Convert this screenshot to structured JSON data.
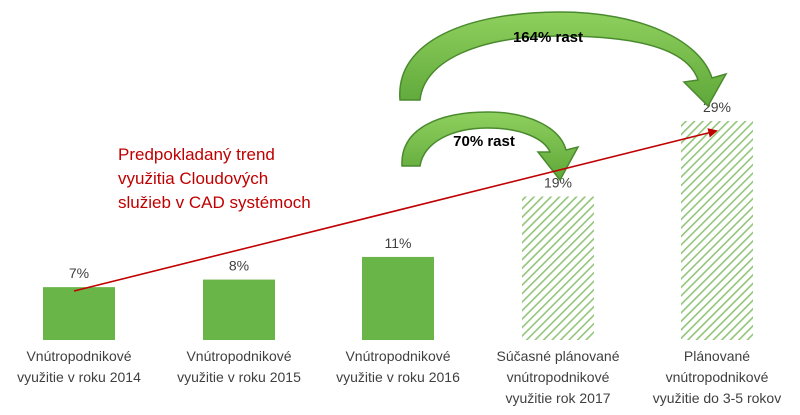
{
  "chart_data": {
    "type": "bar",
    "categories": [
      [
        "Vnútropodnikové",
        "využitie v roku 2014"
      ],
      [
        "Vnútropodnikové",
        "využitie v roku 2015"
      ],
      [
        "Vnútropodnikové",
        "využitie v roku 2016"
      ],
      [
        "Súčasné plánované",
        "vnútropodnikové",
        "využitie rok 2017"
      ],
      [
        "Plánované",
        "vnútropodnikové",
        "využitie do 3-5 rokov"
      ]
    ],
    "values": [
      7,
      8,
      11,
      19,
      29
    ],
    "value_labels": [
      "7%",
      "8%",
      "11%",
      "19%",
      "29%"
    ],
    "hatched": [
      false,
      false,
      false,
      true,
      true
    ],
    "ylim": [
      0,
      29
    ],
    "trend_label": [
      "Predpokladaný trend",
      "využitia Cloudových",
      "služieb v CAD systémoch"
    ],
    "growth_annotations": [
      {
        "label": "70% rast",
        "from": 2,
        "to": 3
      },
      {
        "label": "164% rast",
        "from": 2,
        "to": 4
      }
    ],
    "colors": {
      "bar": "#6ab547",
      "hatch": "#92c57a",
      "trend": "#c00000",
      "arrow_fill": "#7cc04e",
      "arrow_stroke": "#4a8a2e"
    }
  }
}
